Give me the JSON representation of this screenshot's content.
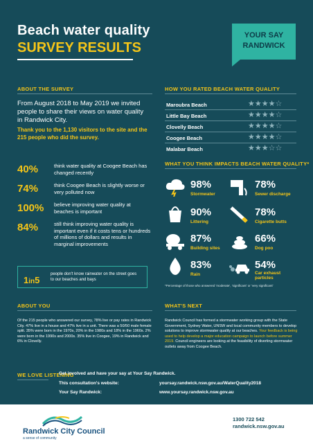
{
  "header": {
    "title": "Beach water quality",
    "subtitle": "SURVEY RESULTS",
    "badge_line1": "YOUR SAY",
    "badge_line2": "RANDWICK"
  },
  "about_survey": {
    "heading": "ABOUT THE SURVEY",
    "intro": "From August 2018 to May 2019 we invited people to share their views on water quality in Randwick City.",
    "thanks": "Thank you to the 1,130 visitors to the site and the 215 people who did the survey.",
    "stats": [
      {
        "pct": "40%",
        "text": "think water quality at Coogee Beach has changed recently"
      },
      {
        "pct": "74%",
        "text": "think Coogee Beach is slightly worse or very polluted now"
      },
      {
        "pct": "100%",
        "text": "believe improving water quality at beaches is important"
      },
      {
        "pct": "84%",
        "text": "still think improving water quality is important even if it costs tens or hundreds of millions of dollars and results in marginal improvements"
      }
    ],
    "one_in_five_num": "1",
    "one_in_five_in": "in",
    "one_in_five_den": "5",
    "one_in_five_text": "people don't know rainwater on the street goes to our beaches and bays"
  },
  "ratings": {
    "heading": "HOW YOU RATED BEACH WATER QUALITY",
    "beaches": [
      {
        "name": "Maroubra Beach",
        "stars": 4
      },
      {
        "name": "Little Bay Beach",
        "stars": 4
      },
      {
        "name": "Clovelly Beach",
        "stars": 4
      },
      {
        "name": "Coogee Beach",
        "stars": 4
      },
      {
        "name": "Malabar Beach",
        "stars": 3
      }
    ]
  },
  "impacts": {
    "heading": "WHAT YOU THINK IMPACTS BEACH WATER QUALITY*",
    "items": [
      {
        "pct": "98%",
        "label": "Stormwater",
        "icon": "storm-cloud-icon"
      },
      {
        "pct": "78%",
        "label": "Sewer discharge",
        "icon": "sewer-pipe-icon"
      },
      {
        "pct": "90%",
        "label": "Littering",
        "icon": "litter-bag-icon"
      },
      {
        "pct": "78%",
        "label": "Cigarette butts",
        "icon": "cigarette-icon"
      },
      {
        "pct": "87%",
        "label": "Building sites",
        "icon": "cement-mixer-icon"
      },
      {
        "pct": "66%",
        "label": "Dog poo",
        "icon": "dog-poo-icon"
      },
      {
        "pct": "83%",
        "label": "Rain",
        "icon": "raindrop-icon"
      },
      {
        "pct": "54%",
        "label": "Car exhaust particles",
        "icon": "car-exhaust-icon"
      }
    ],
    "note": "*Percentage of those who answered 'moderate', 'significant' or 'very significant'"
  },
  "about_you": {
    "heading": "ABOUT YOU",
    "text": "Of the 215 people who answered our survey, 78% live or pay rates in Randwick City. 47% live in a house and 47% live in a unit. There was a 50/50 male female split. 35% were born in the 1970s, 20% in the 1980s and 18% in the 1960s. 2% were born in the 1990s and 2000s. 35% live in Coogee, 19% in Randwick and 6% in Clovelly."
  },
  "whats_next": {
    "heading": "WHAT'S NEXT",
    "text_a": "Randwick Council has formed a stormwater working group with the State Government, Sydney Water, UNSW and local community members to develop solutions to improve stormwater quality at our beaches. ",
    "text_b": "Your feedback is being used to help develop a major education campaign to launch before summer 2019.",
    "text_c": " Council engineers are looking at the feasibility of diverting stormwater outlets away from Coogee Beach."
  },
  "listening": {
    "heading": "WE LOVE LISTENING",
    "intro": "Get involved and have your say at Your Say Randwick.",
    "website_label": "This consultation's website:",
    "website_value": "yoursay.randwick.nsw.gov.au/WaterQuality2018",
    "yoursay_label": "Your Say Randwick:",
    "yoursay_value": "www.yoursay.randwick.nsw.gov.au"
  },
  "footer": {
    "council_name": "Randwick City Council",
    "tagline": "a sense of community",
    "phone": "1300 722 542",
    "web": "randwick.nsw.gov.au"
  },
  "colors": {
    "background": "#164b59",
    "accent_yellow": "#f5c518",
    "accent_teal": "#2fb3a2"
  }
}
